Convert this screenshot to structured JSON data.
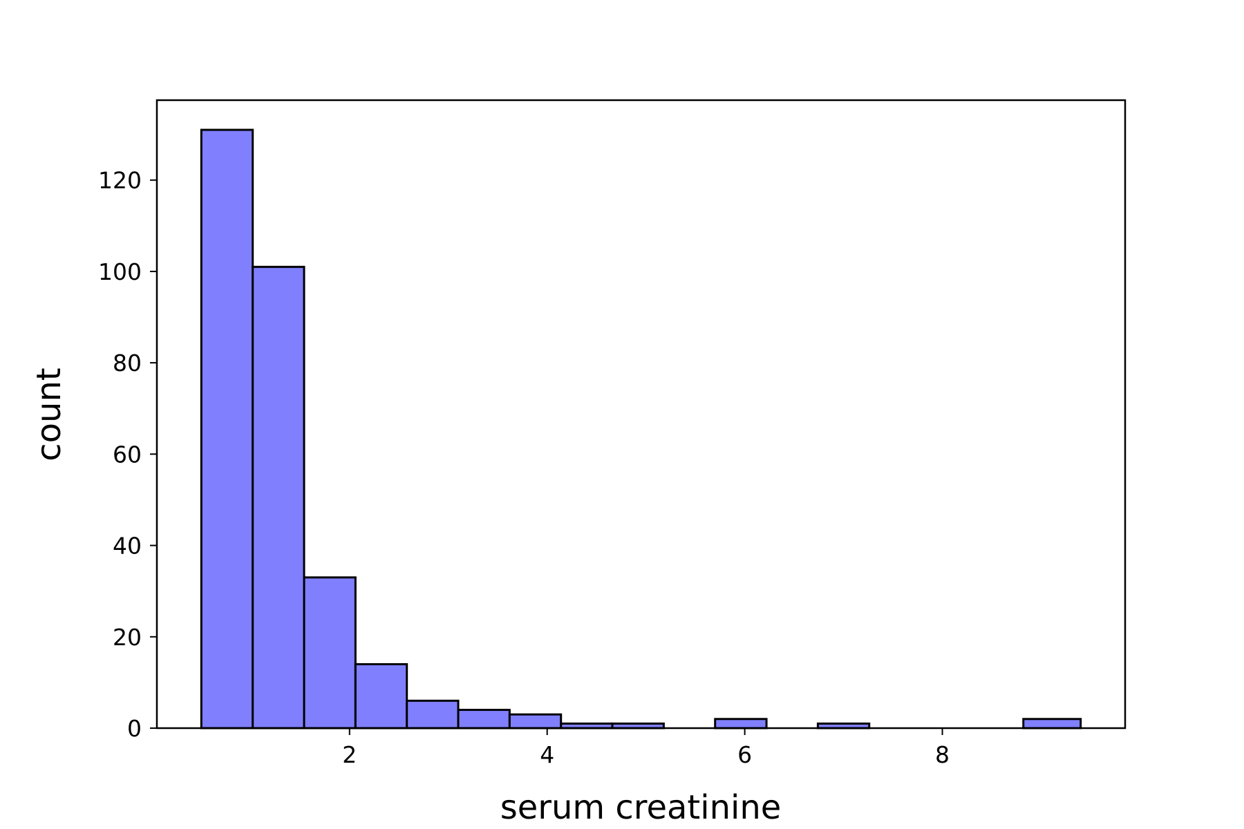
{
  "chart_data": {
    "type": "bar",
    "title": "",
    "xlabel": "serum creatinine",
    "ylabel": "count",
    "bin_edges": [
      0.5,
      1.02,
      1.54,
      2.06,
      2.58,
      3.1,
      3.62,
      4.14,
      4.66,
      5.18,
      5.7,
      6.22,
      6.74,
      7.26,
      7.78,
      8.3,
      8.82,
      9.4
    ],
    "values": [
      131,
      101,
      33,
      14,
      6,
      4,
      3,
      1,
      1,
      0,
      2,
      0,
      1,
      0,
      0,
      0,
      2
    ],
    "xlim": [
      0.05,
      9.85
    ],
    "ylim": [
      0,
      137.5
    ],
    "xticks": [
      2,
      4,
      6,
      8
    ],
    "xtick_labels": [
      "2",
      "4",
      "6",
      "8"
    ],
    "yticks": [
      0,
      20,
      40,
      60,
      80,
      100,
      120
    ],
    "ytick_labels": [
      "0",
      "20",
      "40",
      "60",
      "80",
      "100",
      "120"
    ],
    "bar_color": "#8080ff",
    "edge_color": "#000000",
    "grid": false
  }
}
